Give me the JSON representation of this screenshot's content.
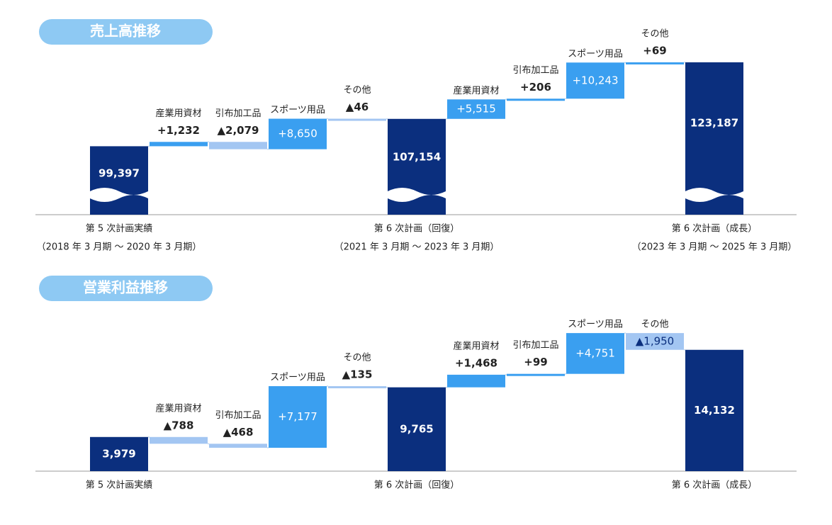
{
  "chart_data": [
    {
      "type": "waterfall",
      "title": "売上高推移",
      "categories": [
        "第 5 次計画実績",
        "産業用資材",
        "引布加工品",
        "スポーツ用品",
        "その他",
        "第 6 次計画（回復）",
        "産業用資材",
        "引布加工品",
        "スポーツ用品",
        "その他",
        "第 6 次計画（成長）"
      ],
      "periods": [
        "（2018 年 3 月期 ～ 2020 年 3 月期）",
        null,
        null,
        null,
        null,
        "（2021 年 3 月期 ～ 2023 年 3 月期）",
        null,
        null,
        null,
        null,
        "（2023 年 3 月期 ～ 2025 年 3 月期）"
      ],
      "measure": [
        "absolute",
        "relative",
        "relative",
        "relative",
        "relative",
        "absolute",
        "relative",
        "relative",
        "relative",
        "relative",
        "absolute"
      ],
      "values": [
        99397,
        1232,
        -2079,
        8650,
        -46,
        107154,
        5515,
        206,
        10243,
        69,
        123187
      ],
      "value_labels": [
        "99,397",
        "+1,232",
        "▲2,079",
        "+8,650",
        "▲46",
        "107,154",
        "+5,515",
        "+206",
        "+10,243",
        "+69",
        "123,187"
      ],
      "ylim": [
        80000,
        130000
      ],
      "axis_break": true,
      "total_color": "#0b2f7e",
      "increase_color": "#3a9ff0",
      "decrease_color": "#a3c6f2"
    },
    {
      "type": "waterfall",
      "title": "営業利益推移",
      "categories": [
        "第 5 次計画実績",
        "産業用資材",
        "引布加工品",
        "スポーツ用品",
        "その他",
        "第 6 次計画（回復）",
        "産業用資材",
        "引布加工品",
        "スポーツ用品",
        "その他",
        "第 6 次計画（成長）"
      ],
      "measure": [
        "absolute",
        "relative",
        "relative",
        "relative",
        "relative",
        "absolute",
        "relative",
        "relative",
        "relative",
        "relative",
        "absolute"
      ],
      "values": [
        3979,
        -788,
        -468,
        7177,
        -135,
        9765,
        1468,
        99,
        4751,
        -1950,
        14132
      ],
      "value_labels": [
        "3,979",
        "▲788",
        "▲468",
        "+7,177",
        "▲135",
        "9,765",
        "+1,468",
        "+99",
        "+4,751",
        "▲1,950",
        "14,132"
      ],
      "ylim": [
        0,
        17000
      ],
      "axis_break": false,
      "total_color": "#0b2f7e",
      "increase_color": "#3a9ff0",
      "decrease_color": "#a3c6f2"
    }
  ]
}
